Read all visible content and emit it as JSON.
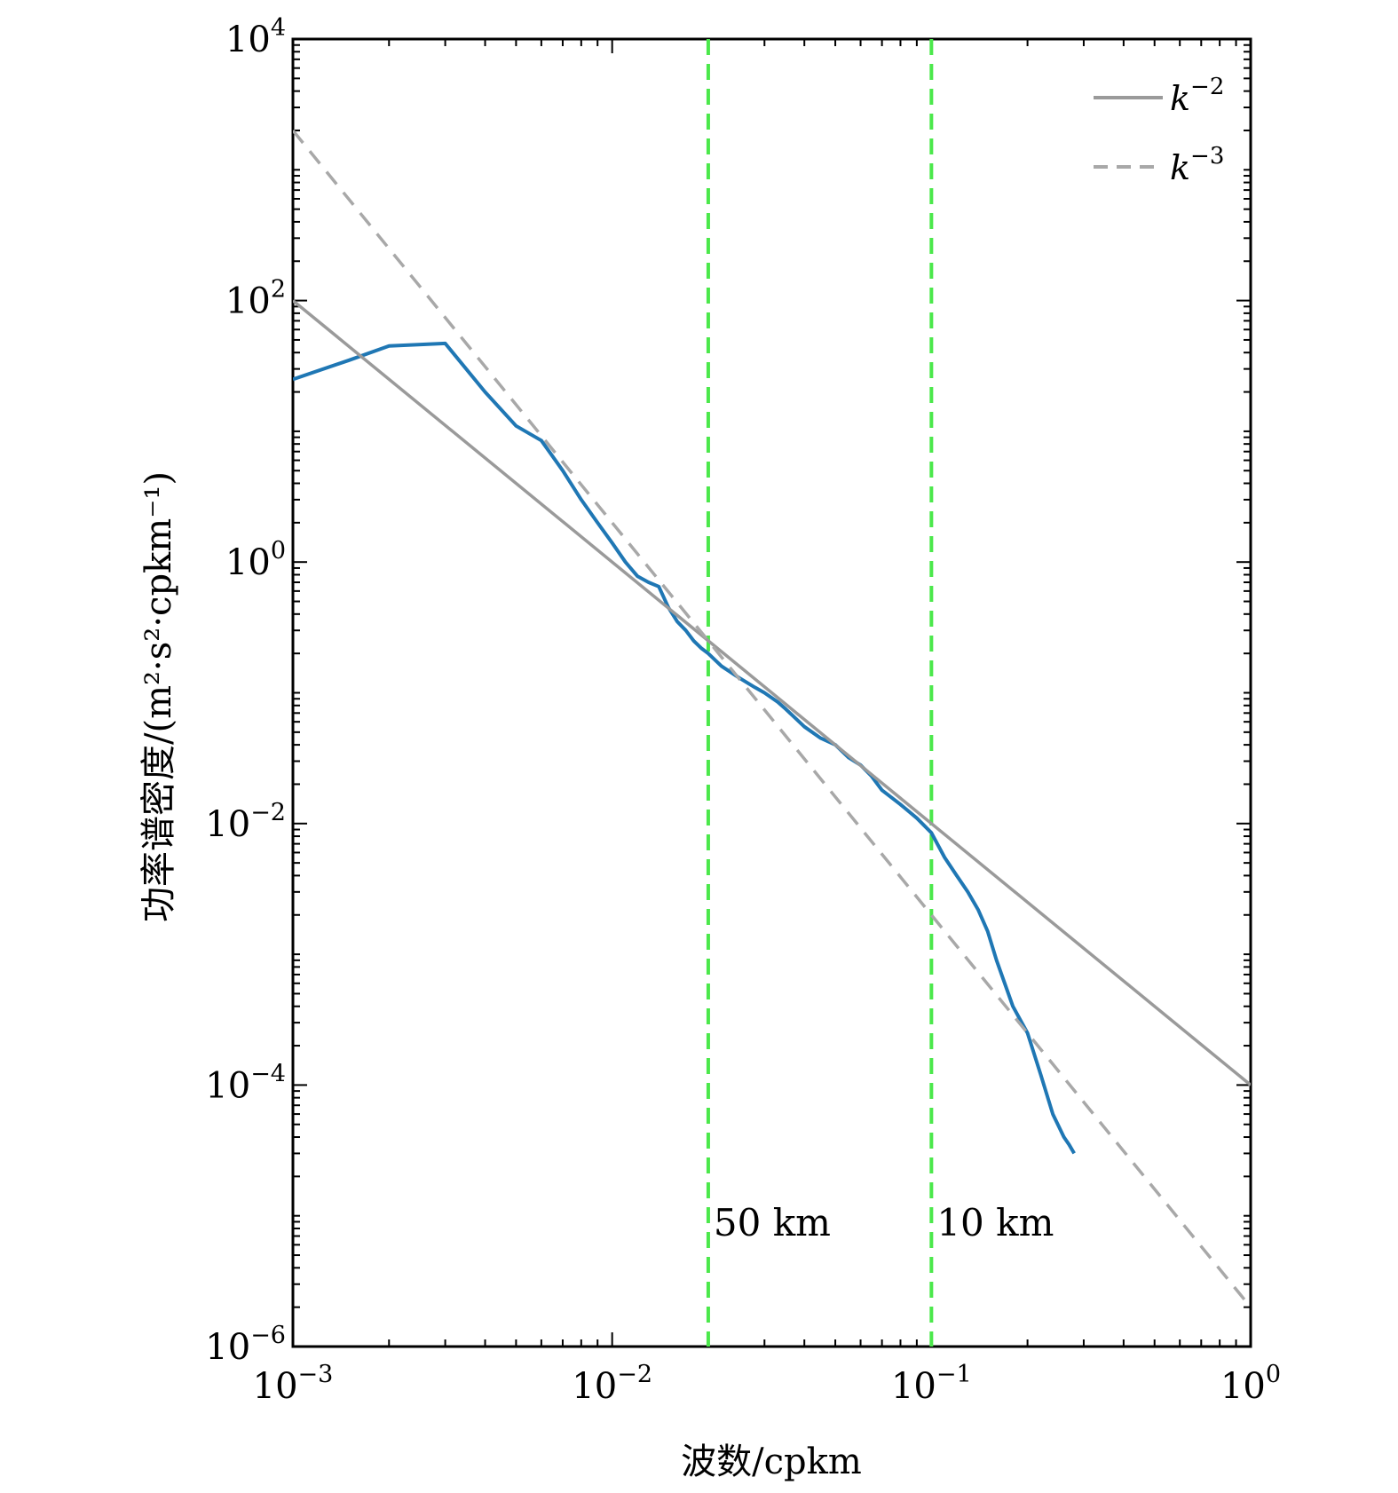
{
  "chart_data": {
    "type": "line",
    "xscale": "log",
    "yscale": "log",
    "xlim": [
      0.001,
      1
    ],
    "ylim": [
      1e-06,
      10000
    ],
    "xlabel": "波数/cpkm",
    "ylabel": "功率谱密度/(m²·s²·cpkm⁻¹)",
    "x_ticks": [
      {
        "value": 0.001,
        "base": "10",
        "exp": "−3"
      },
      {
        "value": 0.01,
        "base": "10",
        "exp": "−2"
      },
      {
        "value": 0.1,
        "base": "10",
        "exp": "−1"
      },
      {
        "value": 1,
        "base": "10",
        "exp": "0"
      }
    ],
    "y_ticks": [
      {
        "value": 1e-06,
        "base": "10",
        "exp": "−6"
      },
      {
        "value": 0.0001,
        "base": "10",
        "exp": "−4"
      },
      {
        "value": 0.01,
        "base": "10",
        "exp": "−2"
      },
      {
        "value": 1,
        "base": "10",
        "exp": "0"
      },
      {
        "value": 100,
        "base": "10",
        "exp": "2"
      },
      {
        "value": 10000,
        "base": "10",
        "exp": "4"
      }
    ],
    "grid": false,
    "legend_position": "top-right",
    "series": [
      {
        "color": "#1f77b4",
        "style": "solid",
        "x": [
          0.001,
          0.0015,
          0.002,
          0.003,
          0.004,
          0.005,
          0.006,
          0.007,
          0.008,
          0.009,
          0.01,
          0.011,
          0.012,
          0.013,
          0.014,
          0.015,
          0.016,
          0.017,
          0.018,
          0.019,
          0.02,
          0.022,
          0.025,
          0.028,
          0.03,
          0.033,
          0.035,
          0.04,
          0.045,
          0.05,
          0.055,
          0.06,
          0.065,
          0.07,
          0.08,
          0.09,
          0.1,
          0.11,
          0.12,
          0.13,
          0.14,
          0.15,
          0.16,
          0.18,
          0.2,
          0.22,
          0.24,
          0.26,
          0.27,
          0.28
        ],
        "y": [
          25,
          35,
          45,
          47,
          20,
          11,
          8.5,
          5,
          3,
          2,
          1.4,
          1,
          0.78,
          0.7,
          0.65,
          0.45,
          0.35,
          0.3,
          0.25,
          0.22,
          0.2,
          0.16,
          0.13,
          0.11,
          0.1,
          0.085,
          0.075,
          0.055,
          0.045,
          0.04,
          0.032,
          0.028,
          0.023,
          0.018,
          0.014,
          0.011,
          0.0085,
          0.0055,
          0.004,
          0.003,
          0.0022,
          0.0015,
          0.0009,
          0.0004,
          0.00025,
          0.00012,
          6e-05,
          4e-05,
          3.5e-05,
          3e-05
        ]
      },
      {
        "name": "k−2",
        "color": "#9a9a9a",
        "style": "solid",
        "x": [
          0.001,
          1
        ],
        "y": [
          100,
          0.0001
        ]
      },
      {
        "name": "k−3",
        "color": "#a8a8a8",
        "style": "dashed",
        "x": [
          0.001,
          1
        ],
        "y": [
          2000,
          2e-06
        ]
      }
    ],
    "legend": [
      {
        "base": "k",
        "exp": "−2",
        "style": "solid",
        "color": "#9a9a9a"
      },
      {
        "base": "k",
        "exp": "−3",
        "style": "dashed",
        "color": "#a8a8a8"
      }
    ],
    "reference_lines": [
      {
        "x": 0.02,
        "label": "50 km",
        "color": "#4be84b"
      },
      {
        "x": 0.1,
        "label": "10 km",
        "color": "#4be84b"
      }
    ]
  }
}
